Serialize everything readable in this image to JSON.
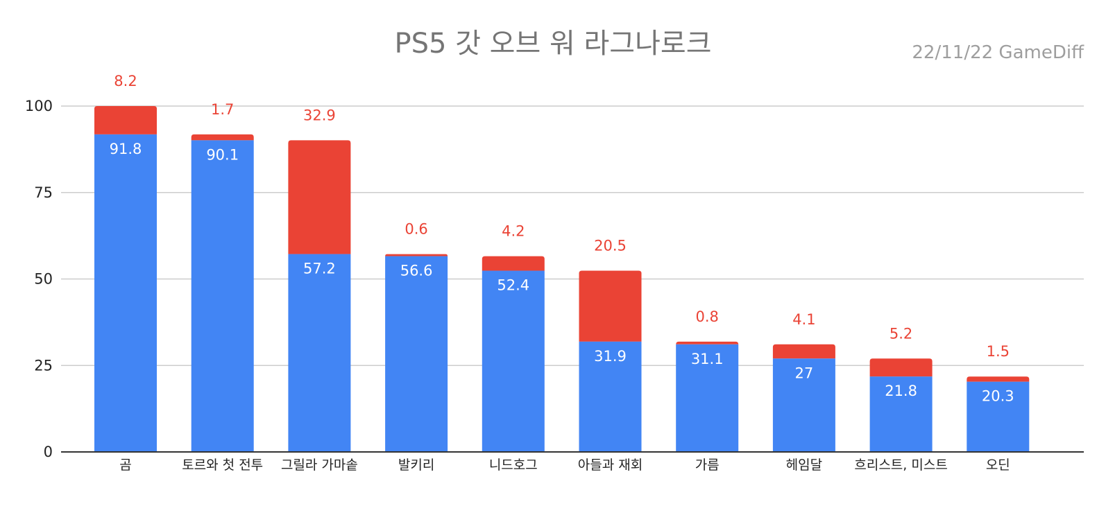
{
  "chart_data": {
    "type": "bar",
    "stacked": true,
    "title": "PS5 갓 오브 워 라그나로크",
    "subtitle": "22/11/22  GameDiff",
    "xlabel": "",
    "ylabel": "",
    "ylim": [
      0,
      100
    ],
    "yticks": [
      0,
      25,
      50,
      75,
      100
    ],
    "grid": true,
    "categories": [
      "곰",
      "토르와 첫 전투",
      "그릴라 가마솥",
      "발키리",
      "니드호그",
      "아들과 재회",
      "가름",
      "헤임달",
      "흐리스트, 미스트",
      "오딘"
    ],
    "series": [
      {
        "values": [
          91.8,
          90.1,
          57.2,
          56.6,
          52.4,
          31.9,
          31.1,
          27,
          21.8,
          20.3
        ],
        "color": "#4285f4"
      },
      {
        "values": [
          8.2,
          1.7,
          32.9,
          0.6,
          4.2,
          20.5,
          0.8,
          4.1,
          5.2,
          1.5
        ],
        "color": "#ea4335"
      }
    ]
  }
}
